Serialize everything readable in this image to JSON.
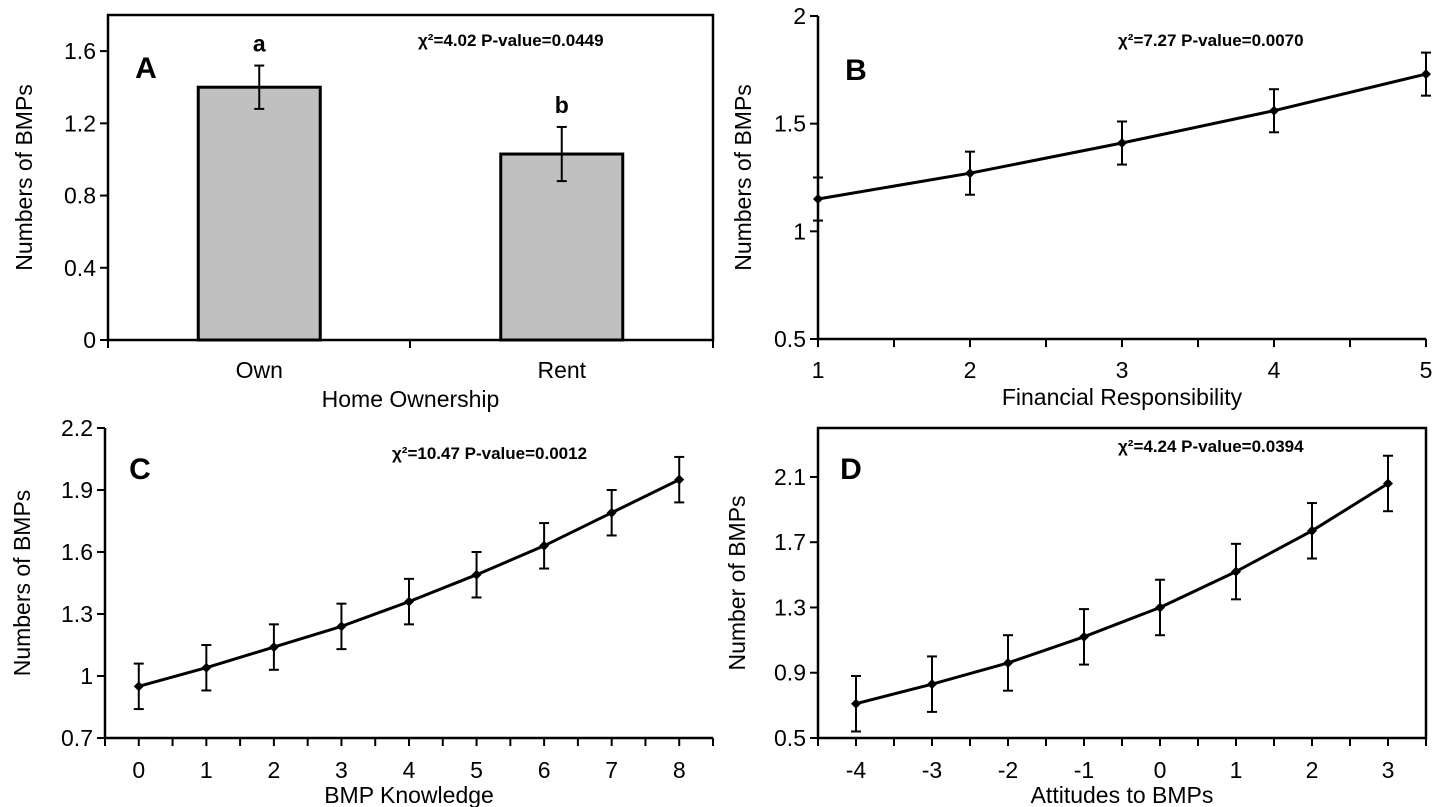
{
  "chart_data": [
    {
      "panel": "A",
      "type": "bar",
      "stat_text": "χ²=4.02 P-value=0.0449",
      "xlabel": "Home Ownership",
      "ylabel": "Numbers of BMPs",
      "categories": [
        "Own",
        "Rent"
      ],
      "values": [
        1.4,
        1.03
      ],
      "error_upper": [
        1.52,
        1.18
      ],
      "error_lower": [
        1.28,
        0.88
      ],
      "significance_letters": [
        "a",
        "b"
      ],
      "bar_color": "#c0c0c0",
      "ylim": [
        0,
        1.8
      ],
      "yticks": [
        0,
        0.4,
        0.8,
        1.2,
        1.6
      ],
      "ytick_labels": [
        "0",
        "0.4",
        "0.8",
        "1.2",
        "1.6"
      ]
    },
    {
      "panel": "B",
      "type": "line",
      "stat_text": "χ²=7.27 P-value=0.0070",
      "xlabel": "Financial Responsibility",
      "ylabel": "Numbers of BMPs",
      "x": [
        1,
        2,
        3,
        4,
        5
      ],
      "y": [
        1.15,
        1.27,
        1.41,
        1.56,
        1.73
      ],
      "error_upper": [
        1.25,
        1.37,
        1.51,
        1.66,
        1.83
      ],
      "error_lower": [
        1.05,
        1.17,
        1.31,
        1.46,
        1.63
      ],
      "xlim": [
        1,
        5
      ],
      "ylim": [
        0.5,
        2
      ],
      "xticks": [
        1,
        2,
        3,
        4,
        5
      ],
      "xtick_labels": [
        "1",
        "2",
        "3",
        "4",
        "5"
      ],
      "yticks": [
        0.5,
        1,
        1.5,
        2
      ],
      "ytick_labels": [
        "0.5",
        "1",
        "1.5",
        "2"
      ]
    },
    {
      "panel": "C",
      "type": "line",
      "stat_text": "χ²=10.47 P-value=0.0012",
      "xlabel": "BMP Knowledge",
      "ylabel": "Numbers of BMPs",
      "x": [
        0,
        1,
        2,
        3,
        4,
        5,
        6,
        7,
        8
      ],
      "y": [
        0.95,
        1.04,
        1.14,
        1.24,
        1.36,
        1.49,
        1.63,
        1.79,
        1.95
      ],
      "error_upper": [
        1.06,
        1.15,
        1.25,
        1.35,
        1.47,
        1.6,
        1.74,
        1.9,
        2.06
      ],
      "error_lower": [
        0.84,
        0.93,
        1.03,
        1.13,
        1.25,
        1.38,
        1.52,
        1.68,
        1.84
      ],
      "xlim": [
        -0.5,
        8.5
      ],
      "ylim": [
        0.7,
        2.2
      ],
      "xticks": [
        0,
        1,
        2,
        3,
        4,
        5,
        6,
        7,
        8
      ],
      "xtick_labels": [
        "0",
        "1",
        "2",
        "3",
        "4",
        "5",
        "6",
        "7",
        "8"
      ],
      "yticks": [
        0.7,
        1,
        1.3,
        1.6,
        1.9,
        2.2
      ],
      "ytick_labels": [
        "0.7",
        "1",
        "1.3",
        "1.6",
        "1.9",
        "2.2"
      ]
    },
    {
      "panel": "D",
      "type": "line",
      "stat_text": "χ²=4.24 P-value=0.0394",
      "xlabel": "Attitudes to BMPs",
      "ylabel": "Number of BMPs",
      "x": [
        -4,
        -3,
        -2,
        -1,
        0,
        1,
        2,
        3
      ],
      "y": [
        0.71,
        0.83,
        0.96,
        1.12,
        1.3,
        1.52,
        1.77,
        2.06
      ],
      "error_upper": [
        0.88,
        1.0,
        1.13,
        1.29,
        1.47,
        1.69,
        1.94,
        2.23
      ],
      "error_lower": [
        0.54,
        0.66,
        0.79,
        0.95,
        1.13,
        1.35,
        1.6,
        1.89
      ],
      "xlim": [
        -4.5,
        3.5
      ],
      "ylim": [
        0.5,
        2.4
      ],
      "xticks": [
        -4,
        -3,
        -2,
        -1,
        0,
        1,
        2,
        3
      ],
      "xtick_labels": [
        "-4",
        "-3",
        "-2",
        "-1",
        "0",
        "1",
        "2",
        "3"
      ],
      "yticks": [
        0.5,
        0.9,
        1.3,
        1.7,
        2.1
      ],
      "ytick_labels": [
        "0.5",
        "0.9",
        "1.3",
        "1.7",
        "2.1"
      ]
    }
  ]
}
